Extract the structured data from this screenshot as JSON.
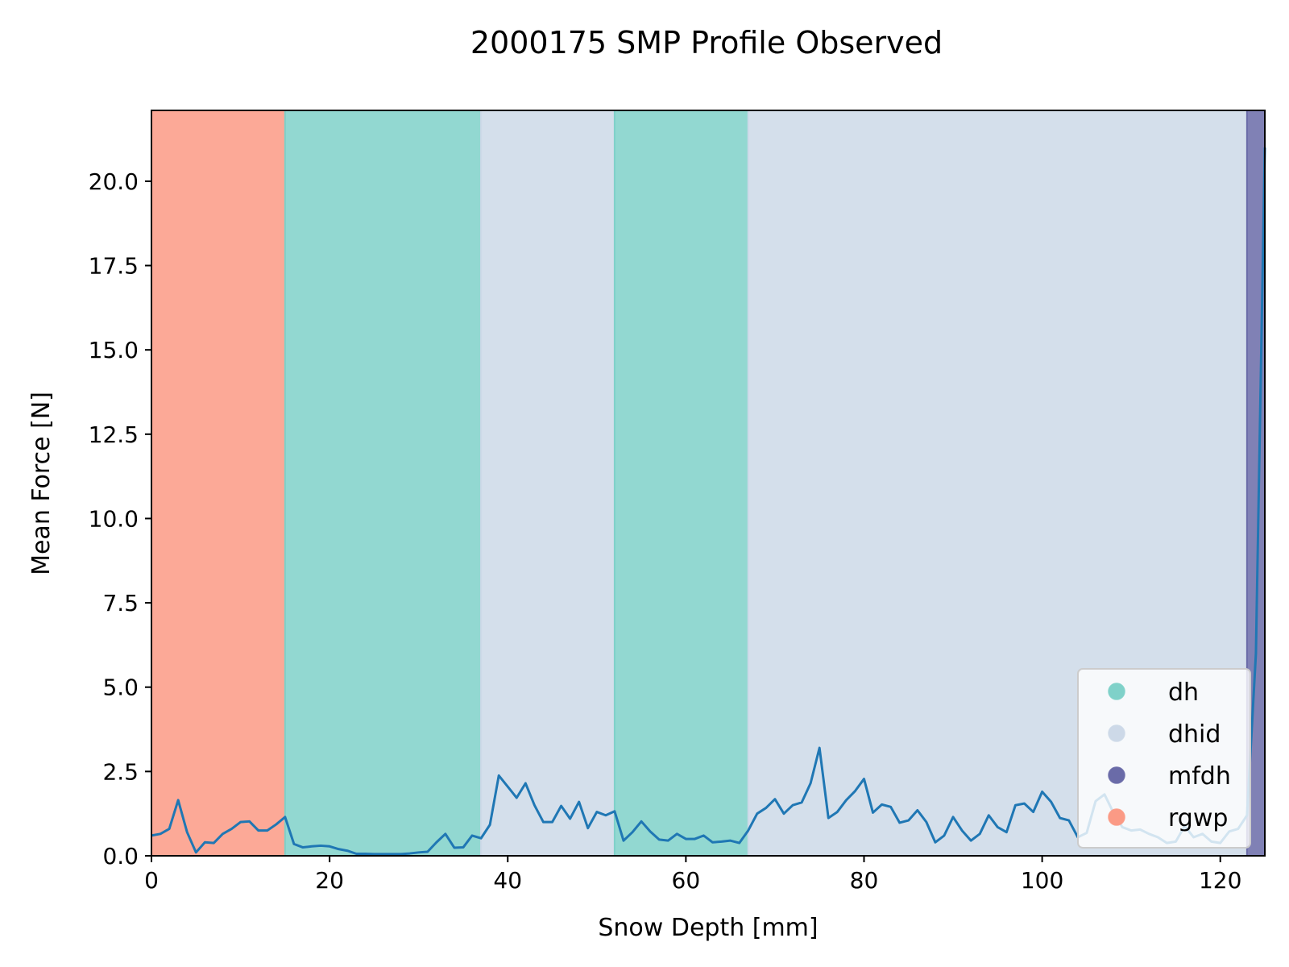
{
  "chart_data": {
    "type": "line",
    "title": "2000175 SMP Profile Observed",
    "xlabel": "Snow Depth [mm]",
    "ylabel": "Mean Force [N]",
    "xlim": [
      0,
      125
    ],
    "ylim": [
      0,
      22.1
    ],
    "xticks": [
      0,
      20,
      40,
      60,
      80,
      100,
      120
    ],
    "yticks": [
      0.0,
      2.5,
      5.0,
      7.5,
      10.0,
      12.5,
      15.0,
      17.5,
      20.0
    ],
    "xtick_labels": [
      "0",
      "20",
      "40",
      "60",
      "80",
      "100",
      "120"
    ],
    "ytick_labels": [
      "0.0",
      "2.5",
      "5.0",
      "7.5",
      "10.0",
      "12.5",
      "15.0",
      "17.5",
      "20.0"
    ],
    "grid": false,
    "legend_position": "lower right",
    "line_color": "#1f77b4",
    "regions": [
      {
        "label": "rgwp",
        "start": 0,
        "end": 15
      },
      {
        "label": "dh",
        "start": 15,
        "end": 37
      },
      {
        "label": "dhid",
        "start": 37,
        "end": 52
      },
      {
        "label": "dh",
        "start": 52,
        "end": 67
      },
      {
        "label": "dhid",
        "start": 67,
        "end": 123
      },
      {
        "label": "mfdh",
        "start": 123,
        "end": 125
      }
    ],
    "legend": [
      {
        "label": "dh",
        "color": "#7fd1c9"
      },
      {
        "label": "dhid",
        "color": "#cdd9e8"
      },
      {
        "label": "mfdh",
        "color": "#6a6ba8"
      },
      {
        "label": "rgwp",
        "color": "#fb9a85"
      }
    ],
    "region_colors": {
      "rgwp": "#fb9a85",
      "dh": "#7fd1c9",
      "dhid": "#cdd9e8",
      "mfdh": "#6a6ba8"
    },
    "series": [
      {
        "x": [
          0,
          1,
          2,
          3,
          4,
          5,
          6,
          7,
          8,
          9,
          10,
          11,
          12,
          13,
          14,
          15,
          16,
          17,
          18,
          19,
          20,
          21,
          22,
          23,
          24,
          25,
          26,
          27,
          28,
          29,
          30,
          31,
          32,
          33,
          34,
          35,
          36,
          37,
          38,
          39,
          40,
          41,
          42,
          43,
          44,
          45,
          46,
          47,
          48,
          49,
          50,
          51,
          52,
          53,
          54,
          55,
          56,
          57,
          58,
          59,
          60,
          61,
          62,
          63,
          64,
          65,
          66,
          67,
          68,
          69,
          70,
          71,
          72,
          73,
          74,
          75,
          76,
          77,
          78,
          79,
          80,
          81,
          82,
          83,
          84,
          85,
          86,
          87,
          88,
          89,
          90,
          91,
          92,
          93,
          94,
          95,
          96,
          97,
          98,
          99,
          100,
          101,
          102,
          103,
          104,
          105,
          106,
          107,
          108,
          109,
          110,
          111,
          112,
          113,
          114,
          115,
          116,
          117,
          118,
          119,
          120,
          121,
          122,
          123,
          124,
          125
        ],
        "y": [
          0.6,
          0.65,
          0.8,
          1.65,
          0.7,
          0.1,
          0.4,
          0.38,
          0.65,
          0.8,
          1.0,
          1.02,
          0.75,
          0.75,
          0.93,
          1.15,
          0.35,
          0.25,
          0.28,
          0.3,
          0.28,
          0.2,
          0.15,
          0.06,
          0.06,
          0.05,
          0.05,
          0.05,
          0.05,
          0.07,
          0.1,
          0.12,
          0.4,
          0.65,
          0.24,
          0.25,
          0.6,
          0.52,
          0.92,
          2.38,
          2.05,
          1.72,
          2.15,
          1.5,
          1.0,
          1.0,
          1.48,
          1.1,
          1.6,
          0.82,
          1.3,
          1.2,
          1.32,
          0.45,
          0.7,
          1.02,
          0.72,
          0.48,
          0.45,
          0.65,
          0.5,
          0.5,
          0.6,
          0.4,
          0.42,
          0.45,
          0.38,
          0.75,
          1.25,
          1.42,
          1.68,
          1.25,
          1.5,
          1.58,
          2.15,
          3.2,
          1.12,
          1.3,
          1.65,
          1.92,
          2.28,
          1.28,
          1.52,
          1.45,
          0.98,
          1.05,
          1.35,
          1.0,
          0.4,
          0.6,
          1.15,
          0.75,
          0.45,
          0.65,
          1.2,
          0.85,
          0.7,
          1.5,
          1.55,
          1.3,
          1.9,
          1.6,
          1.12,
          1.05,
          0.55,
          0.68,
          1.62,
          1.82,
          1.28,
          0.85,
          0.75,
          0.78,
          0.65,
          0.55,
          0.38,
          0.42,
          0.88,
          0.55,
          0.65,
          0.42,
          0.38,
          0.72,
          0.8,
          1.2,
          6.0,
          21.0
        ]
      }
    ]
  }
}
